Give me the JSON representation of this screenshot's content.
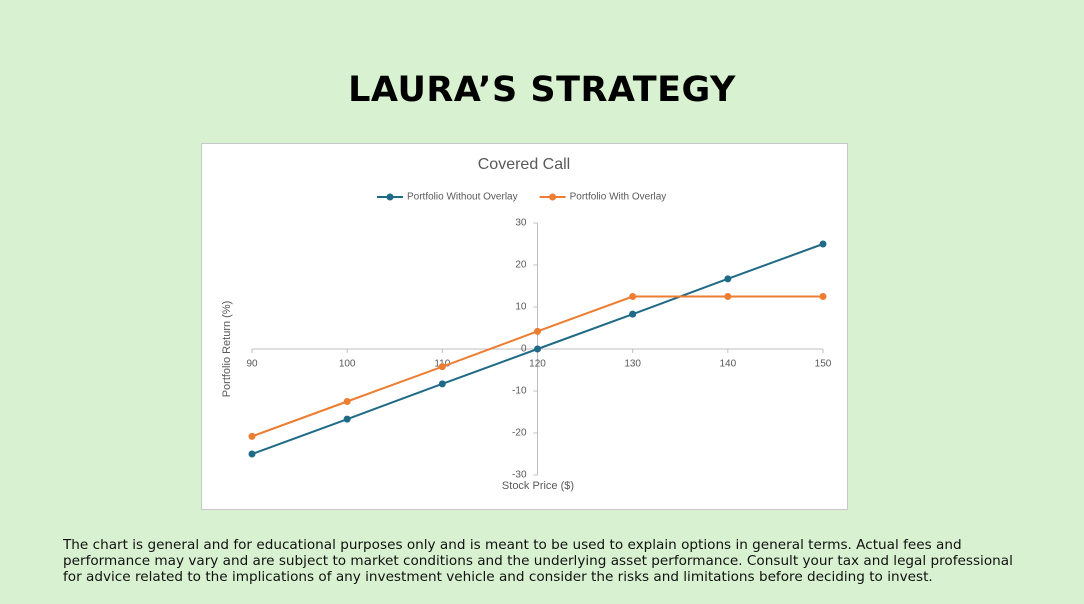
{
  "header": {
    "title": "LAURA’S STRATEGY"
  },
  "chart_data": {
    "type": "line",
    "title": "Covered Call",
    "x_label": "Stock Price ($)",
    "y_label": "Portfolio Return (%)",
    "x": [
      90,
      100,
      110,
      120,
      130,
      140,
      150
    ],
    "series": [
      {
        "name": "Portfolio Without Overlay",
        "color": "#1f6a86",
        "values": [
          -25,
          -16.7,
          -8.3,
          0,
          8.3,
          16.7,
          25
        ]
      },
      {
        "name": "Portfolio With Overlay",
        "color": "#ed7d31",
        "values": [
          -20.8,
          -12.5,
          -4.2,
          4.2,
          12.5,
          12.5,
          12.5
        ]
      }
    ],
    "xlim": [
      90,
      150
    ],
    "xticks": [
      90,
      100,
      110,
      120,
      130,
      140,
      150
    ],
    "ylim": [
      -30,
      30
    ],
    "yticks": [
      -30,
      -20,
      -10,
      0,
      10,
      20,
      30
    ],
    "grid": false,
    "legend": "top",
    "markers": true
  },
  "footer": {
    "text": "The chart is general and for educational purposes only and is meant to be used to explain options in general terms. Actual fees and performance may vary and are subject to market conditions and the underlying asset performance. Consult your tax and legal professional for advice related to the implications of any investment vehicle and consider the risks and limitations before deciding to invest."
  }
}
